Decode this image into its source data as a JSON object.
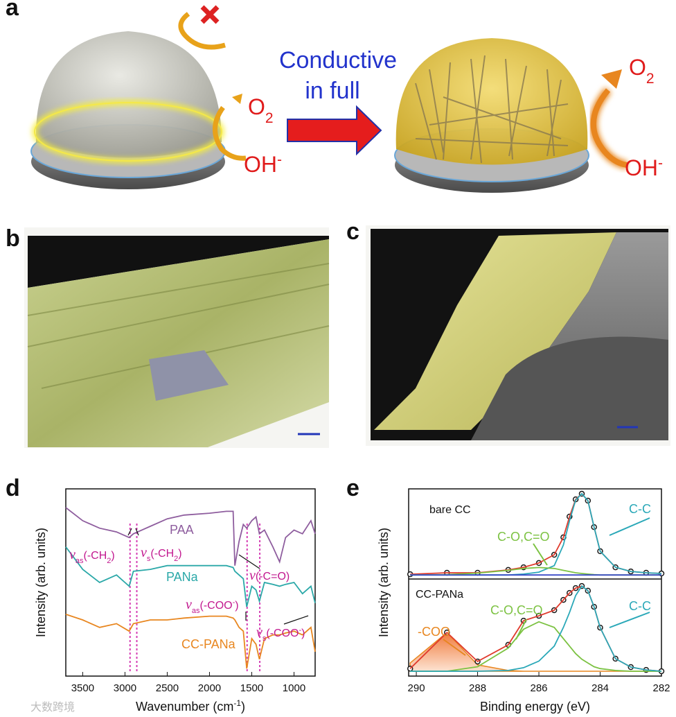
{
  "panel_labels": [
    "a",
    "b",
    "c",
    "d",
    "e"
  ],
  "panel_a": {
    "conductive": "Conductive",
    "in_full": "in full",
    "left_o2": {
      "parts": [
        {
          "text": "O"
        },
        {
          "text": "2",
          "shift": "sub"
        }
      ]
    },
    "left_oh": {
      "parts": [
        {
          "text": "OH"
        },
        {
          "text": "-",
          "shift": "sup"
        }
      ]
    },
    "right_o2": {
      "parts": [
        {
          "text": "O"
        },
        {
          "text": "2",
          "shift": "sub"
        }
      ]
    },
    "right_oh": {
      "parts": [
        {
          "text": "OH"
        },
        {
          "text": "-",
          "shift": "sup"
        }
      ]
    }
  },
  "watermark": "大数跨境",
  "chart_data": [
    {
      "type": "line",
      "xlabel": {
        "parts": [
          {
            "text": "Wavenumber (cm"
          },
          {
            "text": "-1",
            "shift": "sup"
          },
          {
            "text": ")"
          }
        ]
      },
      "ylabel": "Intensity (arb. units)",
      "xlim": [
        3700,
        750
      ],
      "ylim": [
        0,
        10
      ],
      "xticks": [
        3500,
        3000,
        2500,
        2000,
        1500,
        1000
      ],
      "x": [
        3700,
        3500,
        3300,
        3100,
        2950,
        2900,
        2700,
        2500,
        2300,
        2000,
        1800,
        1720,
        1700,
        1650,
        1600,
        1560,
        1500,
        1450,
        1410,
        1350,
        1250,
        1170,
        1100,
        1000,
        900,
        800,
        750
      ],
      "series": [
        {
          "name": "PAA",
          "color": "#8e5d9e",
          "values": [
            9.0,
            8.3,
            7.9,
            7.7,
            7.4,
            7.6,
            8.0,
            8.4,
            8.6,
            8.7,
            8.8,
            8.8,
            5.9,
            7.2,
            8.1,
            7.9,
            8.3,
            8.5,
            7.6,
            7.8,
            6.9,
            6.1,
            7.4,
            7.8,
            7.6,
            8.3,
            7.6
          ]
        },
        {
          "name": "PANa",
          "color": "#2aa8a8",
          "values": [
            6.9,
            5.7,
            5.0,
            5.4,
            4.8,
            5.6,
            5.7,
            5.9,
            5.9,
            5.9,
            5.9,
            5.8,
            5.6,
            5.4,
            5.2,
            3.7,
            4.8,
            4.6,
            4.0,
            5.0,
            4.9,
            4.8,
            4.9,
            5.0,
            4.4,
            4.8,
            3.9
          ]
        },
        {
          "name": "CC-PANa",
          "color": "#e8861f",
          "values": [
            3.3,
            3.0,
            2.6,
            2.8,
            2.4,
            2.8,
            3.0,
            3.0,
            3.1,
            3.2,
            3.2,
            3.1,
            3.0,
            2.6,
            2.4,
            0.4,
            2.0,
            1.7,
            0.9,
            2.0,
            2.2,
            2.2,
            2.3,
            2.4,
            2.2,
            2.6,
            1.3
          ]
        }
      ],
      "vlines": [
        {
          "value": 2940,
          "color": "#d63fb5"
        },
        {
          "value": 2860,
          "color": "#d63fb5"
        },
        {
          "value": 1555,
          "color": "#d63fb5"
        },
        {
          "value": 1405,
          "color": "#d63fb5"
        }
      ],
      "annotations": [
        {
          "color": "#c2188f",
          "parts": [
            {
              "text": "ν"
            },
            {
              "text": "as",
              "shift": "sub"
            },
            {
              "text": "(-CH"
            },
            {
              "text": "2",
              "shift": "sub"
            },
            {
              "text": ")"
            }
          ]
        },
        {
          "color": "#c2188f",
          "parts": [
            {
              "text": "ν"
            },
            {
              "text": "s",
              "shift": "sub"
            },
            {
              "text": "(-CH"
            },
            {
              "text": "2",
              "shift": "sub"
            },
            {
              "text": ")"
            }
          ]
        },
        {
          "color": "#c2188f",
          "parts": [
            {
              "text": "ν"
            },
            {
              "text": "(-C=O)"
            }
          ]
        },
        {
          "color": "#c2188f",
          "parts": [
            {
              "text": "ν"
            },
            {
              "text": "as",
              "shift": "sub"
            },
            {
              "text": "(-COO"
            },
            {
              "text": "-",
              "shift": "sup"
            },
            {
              "text": ")"
            }
          ]
        },
        {
          "color": "#c2188f",
          "parts": [
            {
              "text": "ν"
            },
            {
              "text": "s",
              "shift": "sub"
            },
            {
              "text": "(-COO"
            },
            {
              "text": "-",
              "shift": "sup"
            },
            {
              "text": ")"
            }
          ]
        }
      ]
    },
    {
      "type": "line",
      "xlabel": {
        "parts": [
          {
            "text": "Binding energy (eV)"
          }
        ]
      },
      "ylabel": "Intensity (arb. units)",
      "xlim": [
        290.25,
        282
      ],
      "ylim": [
        0,
        10
      ],
      "xticks": [
        290,
        288,
        286,
        284,
        282
      ],
      "x": [
        290.2,
        289,
        288,
        287,
        286.5,
        286,
        285.5,
        285.2,
        285,
        284.8,
        284.6,
        284.4,
        284.2,
        284,
        283.5,
        283,
        282.5,
        282
      ],
      "series": [
        {
          "color": "#1a1a1a",
          "marker": "circle",
          "values": [
            5.44,
            5.52,
            5.52,
            5.67,
            5.81,
            6.04,
            6.48,
            7.41,
            8.52,
            9.44,
            9.74,
            9.37,
            7.96,
            6.67,
            5.81,
            5.59,
            5.52,
            5.48
          ]
        },
        {
          "color": "#e03a2c",
          "values": [
            5.44,
            5.52,
            5.52,
            5.67,
            5.81,
            6.04,
            6.48,
            7.41,
            8.52,
            9.44,
            9.74,
            9.37,
            7.96,
            6.67,
            5.81,
            5.59,
            5.52,
            5.48
          ]
        },
        {
          "name": "C-C",
          "color": "#2aa8b8",
          "values": [
            5.4,
            5.4,
            5.4,
            5.4,
            5.45,
            5.55,
            5.9,
            7.0,
            8.3,
            9.4,
            9.74,
            9.37,
            7.96,
            6.67,
            5.81,
            5.59,
            5.52,
            5.48
          ]
        },
        {
          "name": "C-O,C=O",
          "color": "#7cc242",
          "values": [
            5.4,
            5.42,
            5.5,
            5.65,
            5.75,
            5.8,
            5.75,
            5.65,
            5.58,
            5.52,
            5.48,
            5.45,
            5.42,
            5.4,
            5.4,
            5.4,
            5.4,
            5.4
          ]
        },
        {
          "color": "#3b4bc8",
          "values": [
            5.4,
            5.4,
            5.4,
            5.4,
            5.4,
            5.4,
            5.4,
            5.4,
            5.4,
            5.4,
            5.4,
            5.4,
            5.4,
            5.4,
            5.4,
            5.4,
            5.4,
            5.4
          ]
        },
        {
          "color": "#1a1a1a",
          "marker": "circle",
          "values": [
            0.4,
            2.33,
            0.78,
            1.67,
            2.96,
            3.22,
            3.52,
            4.07,
            4.44,
            4.7,
            4.81,
            4.56,
            3.7,
            2.59,
            0.93,
            0.48,
            0.33,
            0.26
          ]
        },
        {
          "color": "#e03a2c",
          "values": [
            0.4,
            2.33,
            0.78,
            1.67,
            2.96,
            3.22,
            3.52,
            4.07,
            4.44,
            4.7,
            4.81,
            4.56,
            3.7,
            2.59,
            0.93,
            0.48,
            0.33,
            0.26
          ]
        },
        {
          "name": "-COO",
          "color": "#e8861f",
          "fill": true,
          "values": [
            0.7,
            2.33,
            0.6,
            0.3,
            0.26,
            0.26,
            0.26,
            0.26,
            0.26,
            0.26,
            0.26,
            0.26,
            0.26,
            0.26,
            0.26,
            0.26,
            0.26,
            0.26
          ]
        },
        {
          "name": "C-O,C=O",
          "color": "#7cc242",
          "values": [
            0.26,
            0.26,
            0.5,
            1.5,
            2.5,
            2.9,
            2.6,
            2.0,
            1.6,
            1.2,
            0.9,
            0.7,
            0.5,
            0.4,
            0.3,
            0.26,
            0.26,
            0.26
          ]
        },
        {
          "name": "C-C",
          "color": "#2aa8b8",
          "values": [
            0.26,
            0.26,
            0.26,
            0.3,
            0.45,
            0.8,
            1.6,
            2.6,
            3.4,
            4.3,
            4.81,
            4.56,
            3.7,
            2.59,
            0.93,
            0.48,
            0.33,
            0.26
          ]
        }
      ],
      "annotations": [
        {
          "color": "#111111",
          "parts": [
            {
              "text": "bare CC"
            }
          ]
        },
        {
          "color": "#111111",
          "parts": [
            {
              "text": "CC-PANa"
            }
          ]
        }
      ]
    }
  ]
}
